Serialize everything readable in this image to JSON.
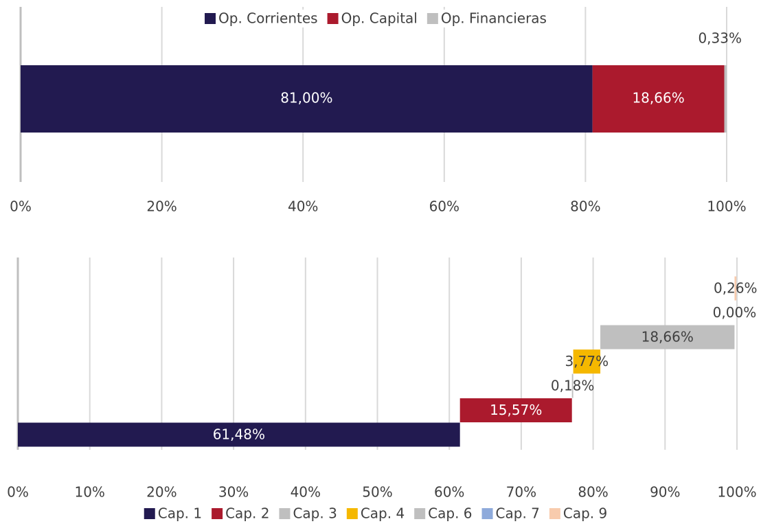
{
  "chart_data": [
    {
      "type": "stacked_bar_h",
      "series": [
        {
          "name": "Op. Corrientes",
          "color": "#221a50",
          "values": [
            81.0
          ],
          "value_labels": [
            "81,00%"
          ]
        },
        {
          "name": "Op. Capital",
          "color": "#ab1a2d",
          "values": [
            18.66
          ],
          "value_labels": [
            "18,66%"
          ]
        },
        {
          "name": "Op. Financieras",
          "color": "#bfbfbf",
          "values": [
            0.33
          ],
          "value_labels": [
            "0,33%"
          ]
        }
      ],
      "xlim": [
        0,
        100
      ],
      "xticks": [
        {
          "value": 0,
          "label": "0%"
        },
        {
          "value": 20,
          "label": "20%"
        },
        {
          "value": 40,
          "label": "40%"
        },
        {
          "value": 60,
          "label": "60%"
        },
        {
          "value": 80,
          "label": "80%"
        },
        {
          "value": 100,
          "label": "100%"
        }
      ],
      "grid": true,
      "legend": "top"
    },
    {
      "type": "waterfall_h",
      "series": [
        {
          "name": "Cap. 1",
          "color": "#221a50",
          "values": [
            61.48
          ],
          "value_labels": [
            "61,48%"
          ]
        },
        {
          "name": "Cap. 2",
          "color": "#ab1a2d",
          "values": [
            15.57
          ],
          "value_labels": [
            "15,57%"
          ]
        },
        {
          "name": "Cap. 3",
          "color": "#bfbfbf",
          "values": [
            0.18
          ],
          "value_labels": [
            "0,18%"
          ]
        },
        {
          "name": "Cap. 4",
          "color": "#f5b800",
          "values": [
            3.77
          ],
          "value_labels": [
            "3,77%"
          ]
        },
        {
          "name": "Cap. 6",
          "color": "#bfbfbf",
          "values": [
            18.66
          ],
          "value_labels": [
            "18,66%"
          ]
        },
        {
          "name": "Cap. 7",
          "color": "#8eaadb",
          "values": [
            0.0
          ],
          "value_labels": [
            "0,00%"
          ]
        },
        {
          "name": "Cap. 9",
          "color": "#f8cbad",
          "values": [
            0.26
          ],
          "value_labels": [
            "0,26%"
          ]
        }
      ],
      "xlim": [
        0,
        100
      ],
      "xticks": [
        {
          "value": 0,
          "label": "0%"
        },
        {
          "value": 10,
          "label": "10%"
        },
        {
          "value": 20,
          "label": "20%"
        },
        {
          "value": 30,
          "label": "30%"
        },
        {
          "value": 40,
          "label": "40%"
        },
        {
          "value": 50,
          "label": "50%"
        },
        {
          "value": 60,
          "label": "60%"
        },
        {
          "value": 70,
          "label": "70%"
        },
        {
          "value": 80,
          "label": "80%"
        },
        {
          "value": 90,
          "label": "90%"
        },
        {
          "value": 100,
          "label": "100%"
        }
      ],
      "grid": true,
      "legend": "bottom"
    }
  ]
}
